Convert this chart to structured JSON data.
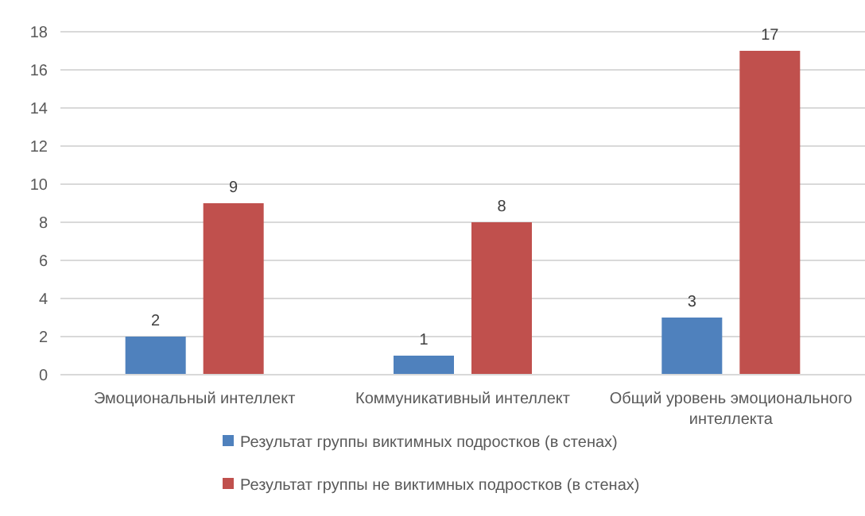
{
  "chart_data": {
    "type": "bar",
    "categories": [
      "Эмоциональный интеллект",
      "Коммуникативный интеллект",
      "Общий уровень эмоционального интеллекта"
    ],
    "series": [
      {
        "name": "Результат группы виктимных подростков (в стенах)",
        "color": "#4f81bd",
        "values": [
          2,
          1,
          3
        ]
      },
      {
        "name": "Результат группы не виктимных подростков (в стенах)",
        "color": "#c0504d",
        "values": [
          9,
          8,
          17
        ]
      }
    ],
    "ylim": [
      0,
      18
    ],
    "yticks": [
      0,
      2,
      4,
      6,
      8,
      10,
      12,
      14,
      16,
      18
    ],
    "grid": "y",
    "legend": "bottom",
    "data_labels": true
  }
}
